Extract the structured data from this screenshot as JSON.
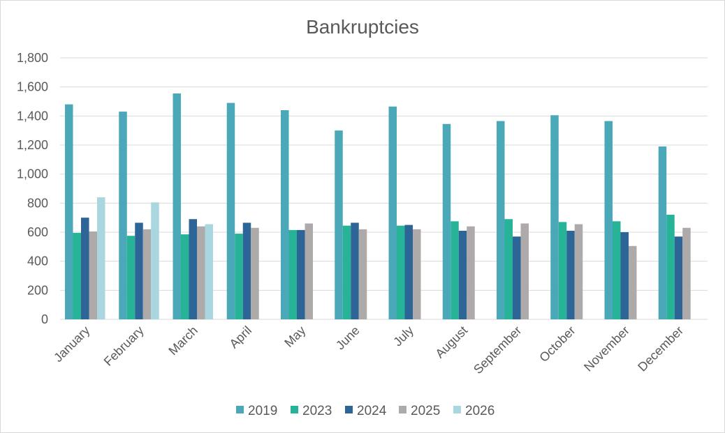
{
  "chart_data": {
    "type": "bar",
    "title": "Bankruptcies",
    "xlabel": "",
    "ylabel": "",
    "ylim": [
      0,
      1800
    ],
    "yticks": [
      0,
      200,
      400,
      600,
      800,
      1000,
      1200,
      1400,
      1600,
      1800
    ],
    "ytick_labels": [
      "0",
      "200",
      "400",
      "600",
      "800",
      "1,000",
      "1,200",
      "1,400",
      "1,600",
      "1,800"
    ],
    "grid": true,
    "legend_position": "bottom",
    "categories": [
      "January",
      "February",
      "March",
      "April",
      "May",
      "June",
      "July",
      "August",
      "September",
      "October",
      "November",
      "December"
    ],
    "series": [
      {
        "name": "2019",
        "color": "#4aa8b8",
        "values": [
          1480,
          1430,
          1555,
          1490,
          1440,
          1300,
          1465,
          1345,
          1365,
          1405,
          1365,
          1190
        ]
      },
      {
        "name": "2023",
        "color": "#26b398",
        "values": [
          595,
          575,
          585,
          590,
          615,
          645,
          645,
          675,
          690,
          670,
          675,
          720
        ]
      },
      {
        "name": "2024",
        "color": "#2e6597",
        "values": [
          700,
          665,
          690,
          665,
          615,
          665,
          650,
          610,
          570,
          610,
          600,
          570
        ]
      },
      {
        "name": "2025",
        "color": "#aeaaaa",
        "values": [
          605,
          620,
          640,
          630,
          660,
          620,
          620,
          640,
          660,
          655,
          505,
          630
        ]
      },
      {
        "name": "2026",
        "color": "#a9d6df",
        "values": [
          840,
          805,
          655,
          null,
          null,
          null,
          null,
          null,
          null,
          null,
          null,
          null
        ]
      }
    ]
  }
}
